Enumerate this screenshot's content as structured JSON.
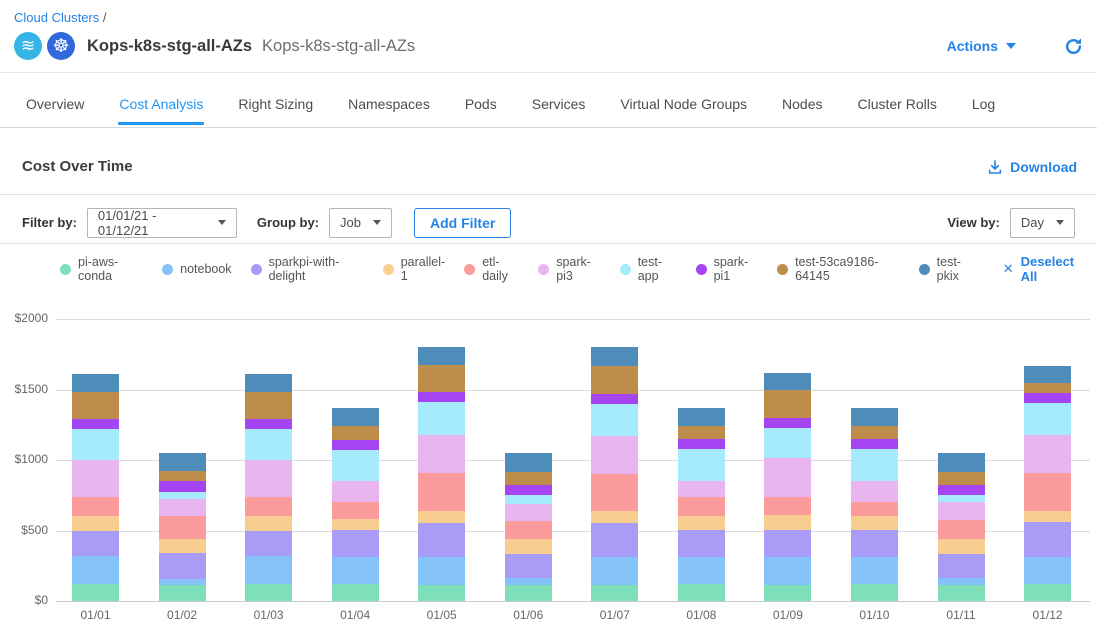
{
  "breadcrumb": {
    "link": "Cloud Clusters",
    "separator": "/"
  },
  "header": {
    "title": "Kops-k8s-stg-all-AZs",
    "subtitle": "Kops-k8s-stg-all-AZs",
    "actions_label": "Actions"
  },
  "icons": {
    "ocean_glyph": "≋",
    "kubernetes_glyph": "☸",
    "close_glyph": "✕"
  },
  "tabs": [
    {
      "label": "Overview",
      "active": false
    },
    {
      "label": "Cost Analysis",
      "active": true
    },
    {
      "label": "Right Sizing",
      "active": false
    },
    {
      "label": "Namespaces",
      "active": false
    },
    {
      "label": "Pods",
      "active": false
    },
    {
      "label": "Services",
      "active": false
    },
    {
      "label": "Virtual Node Groups",
      "active": false
    },
    {
      "label": "Nodes",
      "active": false
    },
    {
      "label": "Cluster Rolls",
      "active": false
    },
    {
      "label": "Log",
      "active": false
    }
  ],
  "section": {
    "title": "Cost Over Time",
    "download_label": "Download"
  },
  "filters": {
    "filter_by_label": "Filter by:",
    "date_range_value": "01/01/21 - 01/12/21",
    "group_by_label": "Group by:",
    "group_by_value": "Job",
    "add_filter_label": "Add Filter",
    "view_by_label": "View by:",
    "view_by_value": "Day"
  },
  "legend": {
    "deselect_all_label": "Deselect All"
  },
  "chart_data": {
    "type": "bar",
    "stacked": true,
    "grid": true,
    "legend_position": "top",
    "ylim": [
      0,
      2000
    ],
    "ytick_values": [
      0,
      500,
      1000,
      1500,
      2000
    ],
    "ytick_labels": [
      "$0",
      "$500",
      "$1000",
      "$1500",
      "$2000"
    ],
    "categories": [
      "01/01",
      "01/02",
      "01/03",
      "01/04",
      "01/05",
      "01/06",
      "01/07",
      "01/08",
      "01/09",
      "01/10",
      "01/11",
      "01/12"
    ],
    "series": [
      {
        "name": "pi-aws-conda",
        "color": "#7edfb8",
        "values": [
          120,
          115,
          120,
          120,
          115,
          115,
          115,
          120,
          115,
          120,
          115,
          120
        ]
      },
      {
        "name": "notebook",
        "color": "#85c2f8",
        "values": [
          200,
          40,
          200,
          195,
          200,
          45,
          200,
          195,
          200,
          195,
          50,
          195
        ]
      },
      {
        "name": "sparkpi-with-delight",
        "color": "#a89cf7",
        "values": [
          180,
          185,
          180,
          190,
          240,
          175,
          235,
          190,
          190,
          190,
          170,
          245
        ]
      },
      {
        "name": "parallel-1",
        "color": "#f8ce90",
        "values": [
          105,
          100,
          105,
          80,
          85,
          105,
          90,
          100,
          105,
          100,
          105,
          80
        ]
      },
      {
        "name": "etl-daily",
        "color": "#fb9b9b",
        "values": [
          130,
          160,
          130,
          120,
          270,
          125,
          260,
          135,
          125,
          100,
          135,
          265
        ]
      },
      {
        "name": "spark-pi3",
        "color": "#e8b5f0",
        "values": [
          265,
          125,
          265,
          145,
          265,
          125,
          270,
          115,
          280,
          150,
          125,
          275
        ]
      },
      {
        "name": "test-app",
        "color": "#a5ebfc",
        "values": [
          220,
          50,
          220,
          225,
          240,
          60,
          230,
          225,
          210,
          225,
          55,
          225
        ]
      },
      {
        "name": "spark-pi1",
        "color": "#a544f2",
        "values": [
          70,
          75,
          70,
          70,
          70,
          75,
          70,
          70,
          75,
          70,
          70,
          70
        ]
      },
      {
        "name": "test-53ca9186-64145",
        "color": "#be8d4c",
        "values": [
          195,
          75,
          195,
          95,
          190,
          90,
          200,
          95,
          195,
          95,
          90,
          70
        ]
      },
      {
        "name": "test-pkix",
        "color": "#4e8cba",
        "values": [
          125,
          125,
          125,
          130,
          125,
          135,
          130,
          125,
          125,
          125,
          135,
          125
        ]
      }
    ],
    "totals": [
      1610,
      1050,
      1610,
      1370,
      1800,
      1050,
      1800,
      1370,
      1620,
      1370,
      1050,
      1670
    ]
  }
}
